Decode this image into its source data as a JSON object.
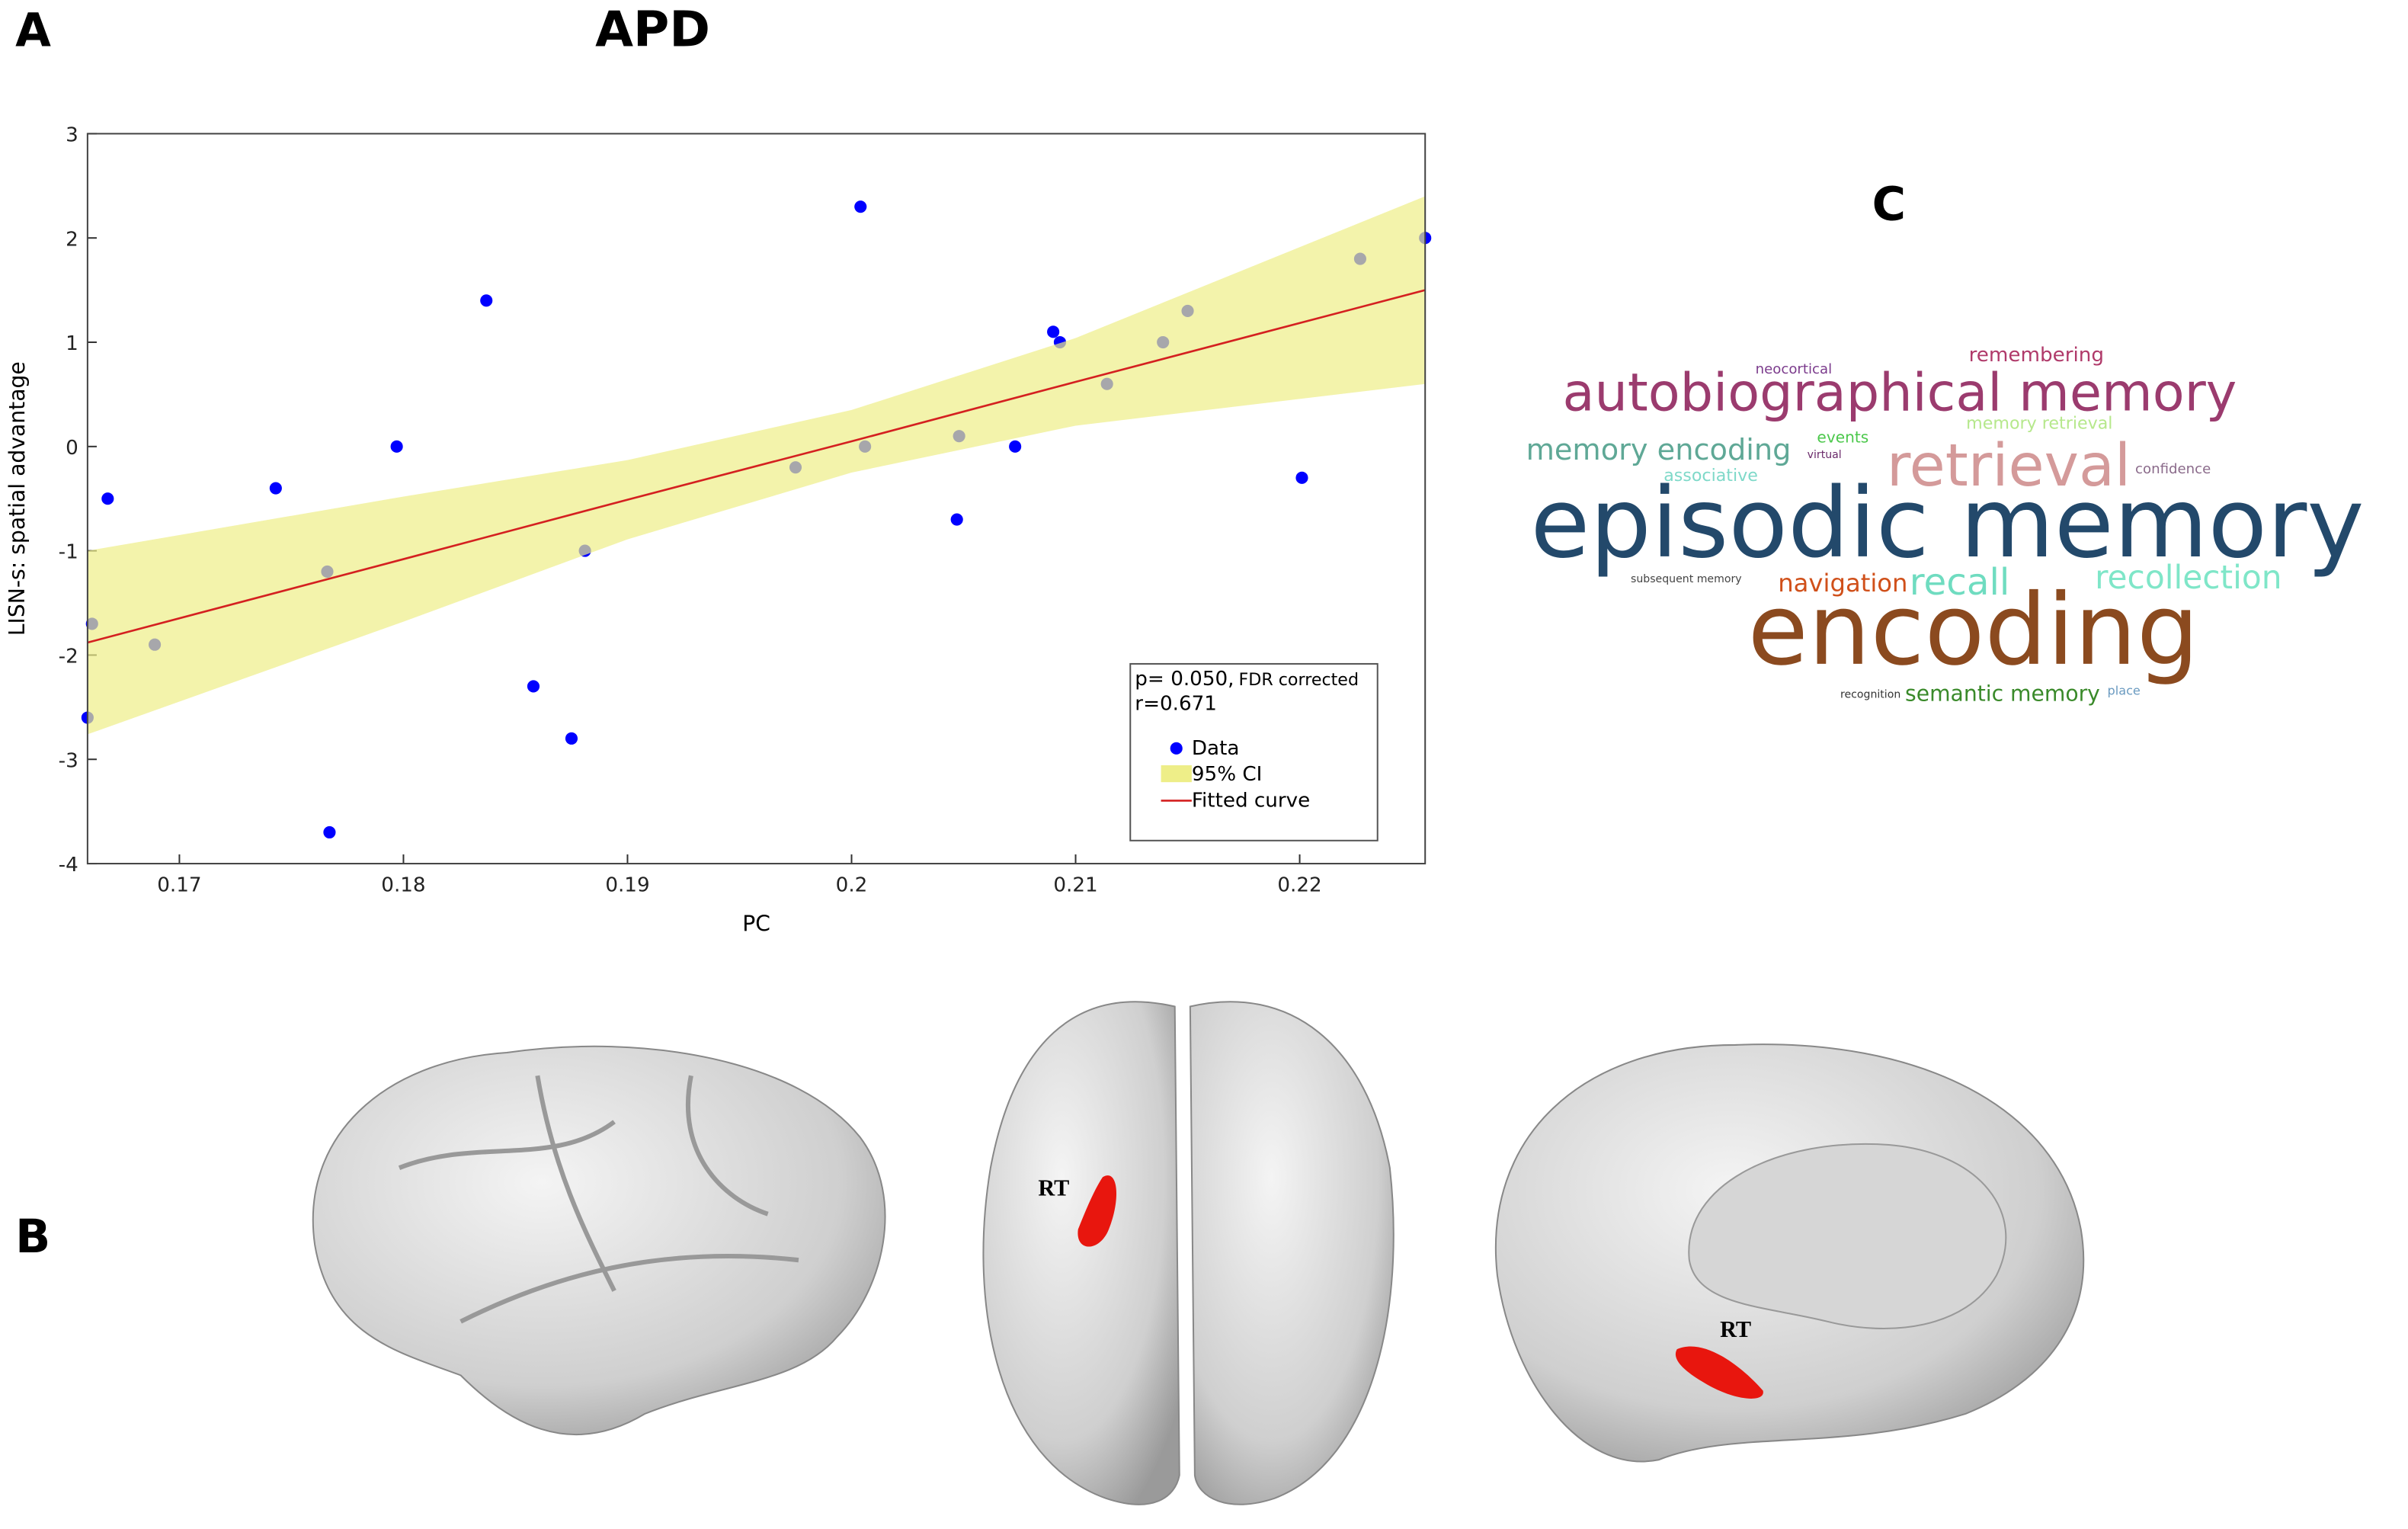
{
  "chart_data": {
    "type": "scatter",
    "panel_label": "A",
    "title": "APD",
    "x_label": "PC",
    "y_label": "LISN-s: spatial advantage",
    "xlim": [
      0.1659,
      0.2256
    ],
    "ylim": [
      -4,
      3
    ],
    "xticks": [
      0.17,
      0.18,
      0.19,
      0.2,
      0.21,
      0.22
    ],
    "yticks": [
      -4,
      -3,
      -2,
      -1,
      0,
      1,
      2,
      3
    ],
    "series": [
      {
        "name": "Data",
        "color": "#0000ff",
        "x": [
          0.1659,
          0.1661,
          0.1668,
          0.1689,
          0.1743,
          0.1766,
          0.1767,
          0.1797,
          0.1837,
          0.1858,
          0.1875,
          0.1881,
          0.1975,
          0.2004,
          0.2006,
          0.2048,
          0.2047,
          0.2073,
          0.209,
          0.2093,
          0.2114,
          0.2139,
          0.215,
          0.2201,
          0.2227,
          0.2256
        ],
        "values": [
          -2.6,
          -1.7,
          -0.5,
          -1.9,
          -0.4,
          -1.2,
          -3.7,
          0,
          1.4,
          -2.3,
          -2.8,
          -1.0,
          -0.2,
          2.3,
          0,
          0.1,
          -0.7,
          0,
          1.1,
          1.0,
          0.6,
          1.0,
          1.3,
          -0.3,
          1.8,
          2.0
        ]
      },
      {
        "name": "95% CI",
        "color": "#eeee88",
        "type": "band",
        "x": [
          0.1659,
          0.18,
          0.19,
          0.2,
          0.21,
          0.2256
        ],
        "upper": [
          -1.0,
          -0.48,
          -0.13,
          0.35,
          1.04,
          2.4
        ],
        "lower": [
          -2.76,
          -1.68,
          -0.89,
          -0.25,
          0.2,
          0.6
        ]
      },
      {
        "name": "Fitted curve",
        "color": "#d42020",
        "type": "line",
        "x": [
          0.1659,
          0.18,
          0.19,
          0.2,
          0.21,
          0.2256
        ],
        "values": [
          -1.88,
          -1.08,
          -0.51,
          0.05,
          0.62,
          1.5
        ]
      }
    ],
    "annotation": {
      "p": "p= 0.050,",
      "p_note": "FDR corrected",
      "r": "r=0.671"
    }
  },
  "panel_b": {
    "label": "B",
    "regions": [
      "RT",
      "RT"
    ]
  },
  "panel_c": {
    "label": "C",
    "words": [
      {
        "text": "remembering",
        "color": "#b03a6a"
      },
      {
        "text": "neocortical",
        "color": "#7b3b8c"
      },
      {
        "text": "autobiographical memory",
        "color": "#9b3b6e"
      },
      {
        "text": "memory retrieval",
        "color": "#b6e88c"
      },
      {
        "text": "memory encoding",
        "color": "#5fa896"
      },
      {
        "text": "events",
        "color": "#4cc84c"
      },
      {
        "text": "virtual",
        "color": "#6a2a6a"
      },
      {
        "text": "retrieval",
        "color": "#d49a9a"
      },
      {
        "text": "confidence",
        "color": "#8a6a8a"
      },
      {
        "text": "associative",
        "color": "#7fd9c9"
      },
      {
        "text": "episodic memory",
        "color": "#23496b"
      },
      {
        "text": "subsequent memory",
        "color": "#444444"
      },
      {
        "text": "navigation",
        "color": "#d0501a"
      },
      {
        "text": "recall",
        "color": "#6fdcc0"
      },
      {
        "text": "recollection",
        "color": "#7fe6c8"
      },
      {
        "text": "encoding",
        "color": "#8b4a1f"
      },
      {
        "text": "recognition",
        "color": "#333333"
      },
      {
        "text": "semantic memory",
        "color": "#3a8a2a"
      },
      {
        "text": "place",
        "color": "#6a9ac0"
      }
    ]
  }
}
